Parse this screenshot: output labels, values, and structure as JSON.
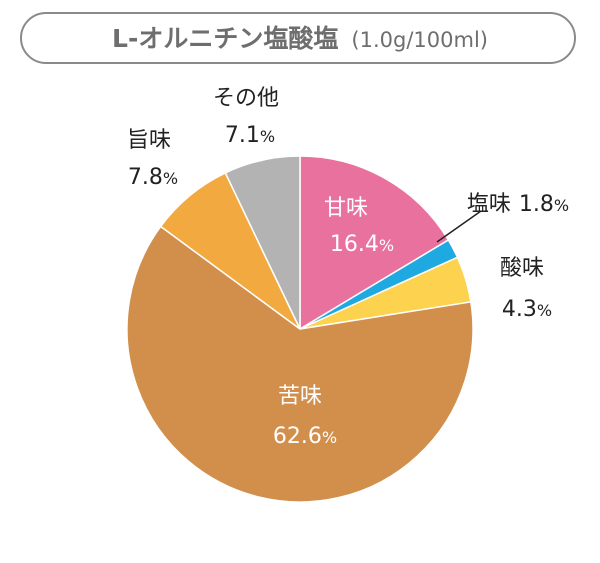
{
  "title": {
    "main": "L-オルニチン塩酸塩",
    "sub": "(1.0g/100ml)"
  },
  "chart_data": {
    "type": "pie",
    "title": "L-オルニチン塩酸塩 (1.0g/100ml)",
    "unit": "%",
    "slices": [
      {
        "label": "甘味",
        "value": 16.4,
        "value_text": "16.4",
        "color": "#e9719e"
      },
      {
        "label": "塩味",
        "value": 1.8,
        "value_text": "1.8",
        "color": "#1fa9e1"
      },
      {
        "label": "酸味",
        "value": 4.3,
        "value_text": "4.3",
        "color": "#fdd24e"
      },
      {
        "label": "苦味",
        "value": 62.6,
        "value_text": "62.6",
        "color": "#d28f4c"
      },
      {
        "label": "旨味",
        "value": 7.8,
        "value_text": "7.8",
        "color": "#f2aa40"
      },
      {
        "label": "その他",
        "value": 7.1,
        "value_text": "7.1",
        "color": "#b3b3b3"
      }
    ]
  }
}
